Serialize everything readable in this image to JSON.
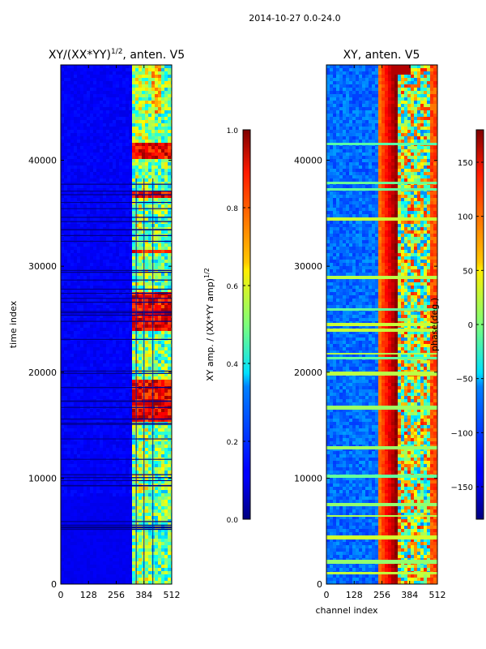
{
  "suptitle": "2014-10-27 0.0-24.0",
  "chart_data": [
    {
      "type": "heatmap",
      "title": "XY/(XX*YY)",
      "title_exponent": "1/2",
      "title_suffix": ", anten. V5",
      "xlabel": "",
      "ylabel": "time index",
      "xlim": [
        0,
        512
      ],
      "ylim": [
        0,
        49000
      ],
      "xticks": [
        0,
        128,
        256,
        384,
        512
      ],
      "yticks": [
        0,
        10000,
        20000,
        30000,
        40000
      ],
      "colormap": "jet",
      "colorbar": {
        "label": "XY amp. / (XX*YY amp)",
        "label_exponent": "1/2",
        "range": [
          0.0,
          1.0
        ],
        "ticks": [
          0.0,
          0.2,
          0.4,
          0.6,
          0.8,
          1.0
        ],
        "tick_labels": [
          "0.0",
          "0.2",
          "0.4",
          "0.6",
          "0.8",
          "1.0"
        ]
      }
    },
    {
      "type": "heatmap",
      "title": "XY, anten. V5",
      "xlabel": "channel index",
      "ylabel": "",
      "xlim": [
        0,
        512
      ],
      "ylim": [
        0,
        49000
      ],
      "xticks": [
        0,
        128,
        256,
        384,
        512
      ],
      "yticks": [
        0,
        10000,
        20000,
        30000,
        40000
      ],
      "colormap": "jet",
      "colorbar": {
        "label": "phase(deg.)",
        "range": [
          -180,
          180
        ],
        "ticks": [
          -150,
          -100,
          -50,
          0,
          50,
          100,
          150
        ],
        "tick_labels": [
          "−150",
          "−100",
          "−50",
          "0",
          "50",
          "100",
          "150"
        ]
      }
    }
  ]
}
